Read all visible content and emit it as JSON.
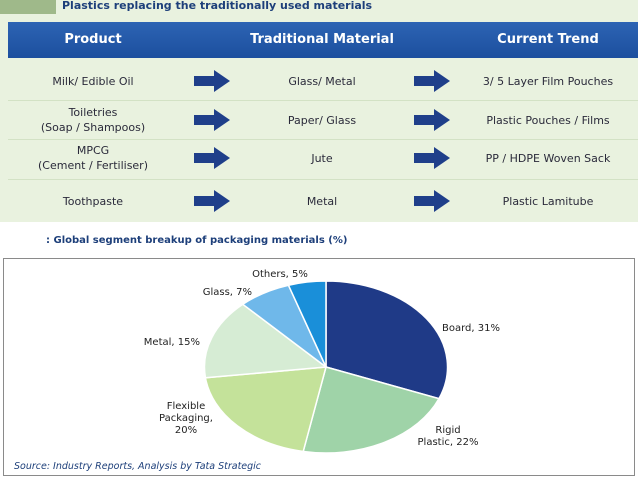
{
  "header_title": "Plastics replacing the traditionally used materials",
  "table": {
    "columns": [
      "Product",
      "Traditional Material",
      "Current Trend"
    ],
    "rows": [
      {
        "product": [
          "Milk/ Edible Oil"
        ],
        "traditional": "Glass/ Metal",
        "trend": "3/ 5 Layer Film Pouches"
      },
      {
        "product": [
          "Toiletries",
          "(Soap / Shampoos)"
        ],
        "traditional": "Paper/ Glass",
        "trend": "Plastic Pouches / Films"
      },
      {
        "product": [
          "MPCG",
          "(Cement / Fertiliser)"
        ],
        "traditional": "Jute",
        "trend": "PP / HDPE Woven Sack"
      },
      {
        "product": [
          "Toothpaste"
        ],
        "traditional": "Metal",
        "trend": "Plastic Lamitube"
      }
    ],
    "arrow_color": "#1f3f8a",
    "header_color": "#2560ae",
    "band_color": "#e9f2df"
  },
  "chart_caption": ": Global segment breakup of packaging materials (%)",
  "chart_data": {
    "type": "pie",
    "title": ": Global segment breakup of packaging materials (%)",
    "slices": [
      {
        "label": [
          "Board, 31%"
        ],
        "value": 31,
        "color": "#1f3a87"
      },
      {
        "label": [
          "Rigid",
          "Plastic, 22%"
        ],
        "value": 22,
        "color": "#9fd3a8"
      },
      {
        "label": [
          "Flexible",
          "Packaging,",
          "20%"
        ],
        "value": 20,
        "color": "#c4e29a"
      },
      {
        "label": [
          "Metal, 15%"
        ],
        "value": 15,
        "color": "#d6ecd4"
      },
      {
        "label": [
          "Glass, 7%"
        ],
        "value": 7,
        "color": "#6fb8ea"
      },
      {
        "label": [
          "Others, 5%"
        ],
        "value": 5,
        "color": "#1a8fd9"
      }
    ],
    "source": "Source: Industry Reports, Analysis by Tata Strategic"
  }
}
